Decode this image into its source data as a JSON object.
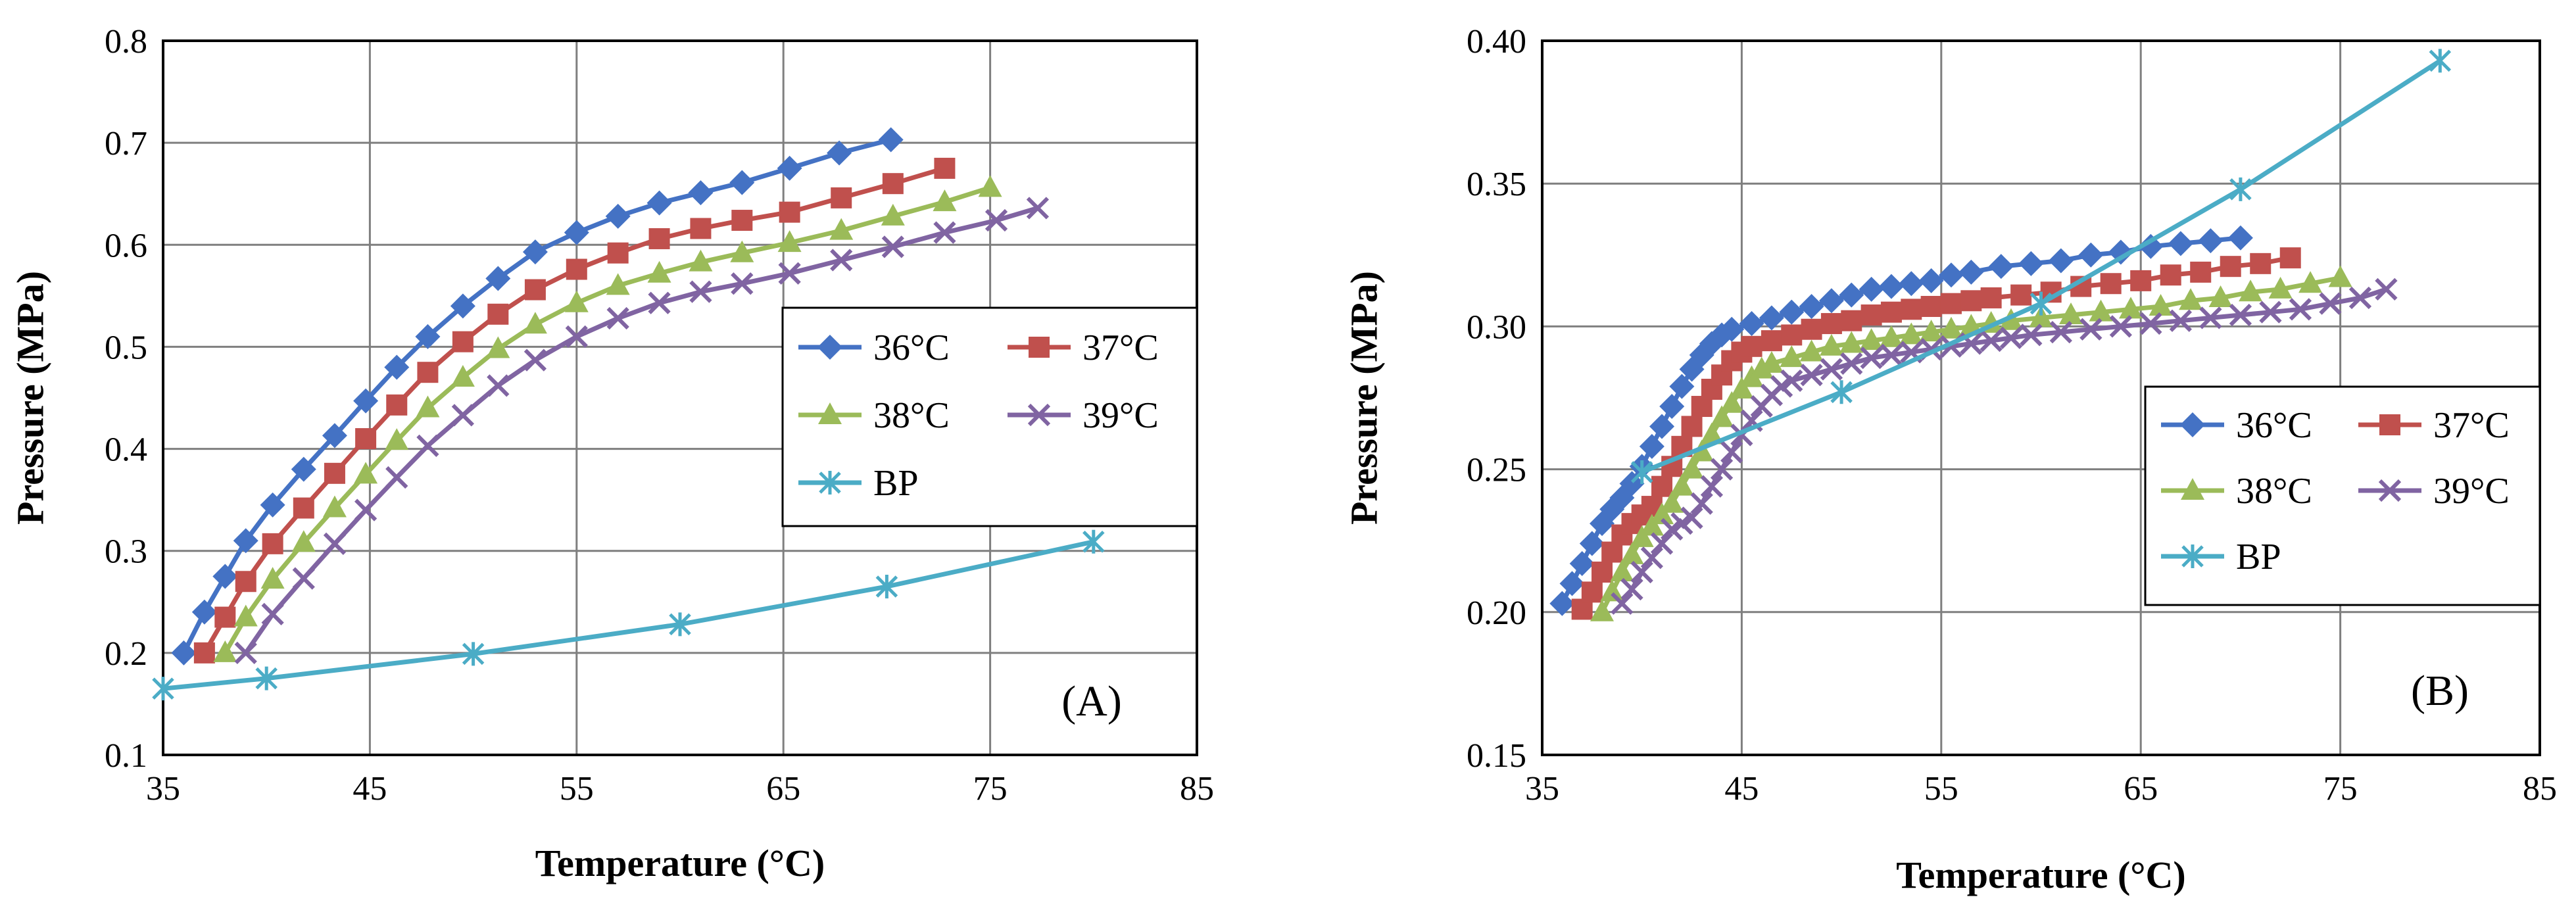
{
  "colors": {
    "36C": "#4472C4",
    "37C": "#C0504D",
    "38C": "#9BBB59",
    "39C": "#8064A2",
    "BP": "#4BACC6",
    "grid": "#7F7F7F",
    "frame": "#000000"
  },
  "chart_data": [
    {
      "type": "line",
      "panel_label": "(A)",
      "xlabel": "Temperature (°C)",
      "ylabel": "Pressure (MPa)",
      "xlim": [
        35,
        85
      ],
      "ylim": [
        0.1,
        0.8
      ],
      "x_ticks": [
        35,
        45,
        55,
        65,
        75,
        85
      ],
      "x_tick_labels": [
        "35",
        "45",
        "55",
        "65",
        "75",
        "85"
      ],
      "y_ticks": [
        0.1,
        0.2,
        0.3,
        0.4,
        0.5,
        0.6,
        0.7,
        0.8
      ],
      "y_tick_labels": [
        "0.1",
        "0.2",
        "0.3",
        "0.4",
        "0.5",
        "0.6",
        "0.7",
        "0.8"
      ],
      "grid": true,
      "legend": {
        "placement": "right-center",
        "columns": 2
      },
      "series": [
        {
          "name": "36°C",
          "color_key": "36C",
          "marker": "diamond",
          "x": [
            36,
            37,
            38,
            39,
            40.3,
            41.8,
            43.3,
            44.8,
            46.3,
            47.8,
            49.5,
            51.2,
            53,
            55,
            57,
            59,
            61,
            63,
            65.3,
            67.7,
            70.2
          ],
          "y": [
            0.2,
            0.24,
            0.275,
            0.31,
            0.345,
            0.38,
            0.413,
            0.447,
            0.48,
            0.51,
            0.54,
            0.567,
            0.593,
            0.612,
            0.628,
            0.641,
            0.651,
            0.661,
            0.675,
            0.69,
            0.703
          ]
        },
        {
          "name": "37°C",
          "color_key": "37C",
          "marker": "square",
          "x": [
            37,
            38,
            39,
            40.3,
            41.8,
            43.3,
            44.8,
            46.3,
            47.8,
            49.5,
            51.2,
            53,
            55,
            57,
            59,
            61,
            63,
            65.3,
            67.8,
            70.3,
            72.8
          ],
          "y": [
            0.2,
            0.235,
            0.27,
            0.307,
            0.342,
            0.376,
            0.41,
            0.443,
            0.475,
            0.505,
            0.532,
            0.556,
            0.576,
            0.592,
            0.606,
            0.616,
            0.624,
            0.632,
            0.646,
            0.66,
            0.675
          ]
        },
        {
          "name": "38°C",
          "color_key": "38C",
          "marker": "triangle",
          "x": [
            38,
            39,
            40.3,
            41.8,
            43.3,
            44.8,
            46.3,
            47.8,
            49.5,
            51.2,
            53,
            55,
            57,
            59,
            61,
            63,
            65.3,
            67.8,
            70.3,
            72.8,
            75
          ],
          "y": [
            0.2,
            0.235,
            0.272,
            0.308,
            0.342,
            0.375,
            0.408,
            0.44,
            0.47,
            0.498,
            0.522,
            0.543,
            0.56,
            0.572,
            0.583,
            0.592,
            0.602,
            0.614,
            0.628,
            0.642,
            0.656
          ]
        },
        {
          "name": "39°C",
          "color_key": "39C",
          "marker": "x",
          "x": [
            39,
            40.3,
            41.8,
            43.3,
            44.8,
            46.3,
            47.8,
            49.5,
            51.2,
            53,
            55,
            57,
            59,
            61,
            63,
            65.3,
            67.8,
            70.3,
            72.8,
            75.3,
            77.3
          ],
          "y": [
            0.2,
            0.238,
            0.273,
            0.307,
            0.34,
            0.372,
            0.403,
            0.433,
            0.462,
            0.487,
            0.51,
            0.528,
            0.543,
            0.554,
            0.562,
            0.572,
            0.585,
            0.598,
            0.612,
            0.624,
            0.636
          ]
        },
        {
          "name": "BP",
          "color_key": "BP",
          "marker": "star",
          "x": [
            35,
            40,
            50,
            60,
            70,
            80
          ],
          "y": [
            0.165,
            0.175,
            0.199,
            0.228,
            0.265,
            0.309
          ]
        }
      ]
    },
    {
      "type": "line",
      "panel_label": "(B)",
      "xlabel": "Temperature (°C)",
      "ylabel": "Pressure (MPa)",
      "xlim": [
        35,
        85
      ],
      "ylim": [
        0.15,
        0.4
      ],
      "x_ticks": [
        35,
        45,
        55,
        65,
        75,
        85
      ],
      "x_tick_labels": [
        "35",
        "45",
        "55",
        "65",
        "75",
        "85"
      ],
      "y_ticks": [
        0.15,
        0.2,
        0.25,
        0.3,
        0.35,
        0.4
      ],
      "y_tick_labels": [
        "0.15",
        "0.20",
        "0.25",
        "0.30",
        "0.35",
        "0.40"
      ],
      "grid": true,
      "legend": {
        "placement": "bottom-right",
        "columns": 2
      },
      "series": [
        {
          "name": "36°C",
          "color_key": "36C",
          "marker": "diamond",
          "x": [
            36,
            36.5,
            37,
            37.5,
            38,
            38.5,
            39,
            39.5,
            40,
            40.5,
            41,
            41.5,
            42,
            42.5,
            43,
            43.5,
            44,
            44.5,
            45.5,
            46.5,
            47.5,
            48.5,
            49.5,
            50.5,
            51.5,
            52.5,
            53.5,
            54.5,
            55.5,
            56.5,
            58,
            59.5,
            61,
            62.5,
            64,
            65.5,
            67,
            68.5,
            70
          ],
          "y": [
            0.203,
            0.21,
            0.217,
            0.224,
            0.231,
            0.236,
            0.24,
            0.245,
            0.251,
            0.258,
            0.265,
            0.272,
            0.279,
            0.285,
            0.29,
            0.294,
            0.297,
            0.299,
            0.301,
            0.303,
            0.305,
            0.307,
            0.309,
            0.311,
            0.313,
            0.314,
            0.315,
            0.316,
            0.318,
            0.319,
            0.321,
            0.322,
            0.323,
            0.325,
            0.326,
            0.328,
            0.329,
            0.33,
            0.331
          ]
        },
        {
          "name": "37°C",
          "color_key": "37C",
          "marker": "square",
          "x": [
            37,
            37.5,
            38,
            38.5,
            39,
            39.5,
            40,
            40.5,
            41,
            41.5,
            42,
            42.5,
            43,
            43.5,
            44,
            44.5,
            45,
            45.5,
            46.5,
            47.5,
            48.5,
            49.5,
            50.5,
            51.5,
            52.5,
            53.5,
            54.5,
            55.5,
            56.5,
            57.5,
            59,
            60.5,
            62,
            63.5,
            65,
            66.5,
            68,
            69.5,
            71,
            72.5
          ],
          "y": [
            0.201,
            0.207,
            0.214,
            0.221,
            0.227,
            0.231,
            0.234,
            0.237,
            0.244,
            0.251,
            0.258,
            0.265,
            0.272,
            0.278,
            0.283,
            0.288,
            0.291,
            0.293,
            0.295,
            0.297,
            0.299,
            0.301,
            0.302,
            0.304,
            0.305,
            0.306,
            0.307,
            0.308,
            0.309,
            0.31,
            0.311,
            0.312,
            0.314,
            0.315,
            0.316,
            0.318,
            0.319,
            0.321,
            0.322,
            0.324
          ]
        },
        {
          "name": "38°C",
          "color_key": "38C",
          "marker": "triangle",
          "x": [
            38,
            38.5,
            39,
            39.5,
            40,
            40.5,
            41,
            41.5,
            42,
            42.5,
            43,
            43.5,
            44,
            44.5,
            45,
            45.5,
            46,
            46.5,
            47.5,
            48.5,
            49.5,
            50.5,
            51.5,
            52.5,
            53.5,
            54.5,
            55.5,
            56.5,
            57.5,
            58.5,
            60,
            61.5,
            63,
            64.5,
            66,
            67.5,
            69,
            70.5,
            72,
            73.5,
            75
          ],
          "y": [
            0.2,
            0.207,
            0.214,
            0.22,
            0.226,
            0.23,
            0.234,
            0.238,
            0.244,
            0.25,
            0.256,
            0.262,
            0.268,
            0.273,
            0.278,
            0.282,
            0.285,
            0.287,
            0.289,
            0.291,
            0.293,
            0.294,
            0.295,
            0.296,
            0.297,
            0.298,
            0.299,
            0.3,
            0.301,
            0.302,
            0.303,
            0.304,
            0.305,
            0.306,
            0.307,
            0.309,
            0.31,
            0.312,
            0.313,
            0.315,
            0.317
          ]
        },
        {
          "name": "39°C",
          "color_key": "39C",
          "marker": "x",
          "x": [
            39,
            39.5,
            40,
            40.5,
            41,
            41.5,
            42,
            42.5,
            43,
            43.5,
            44,
            44.5,
            45,
            45.5,
            46,
            46.5,
            47,
            47.5,
            48.5,
            49.5,
            50.5,
            51.5,
            52.5,
            53.5,
            54.5,
            55.5,
            56.5,
            57.5,
            58.5,
            59.5,
            61,
            62.5,
            64,
            65.5,
            67,
            68.5,
            70,
            71.5,
            73,
            74.5,
            76,
            77.3
          ],
          "y": [
            0.203,
            0.208,
            0.214,
            0.219,
            0.224,
            0.229,
            0.231,
            0.233,
            0.238,
            0.244,
            0.25,
            0.256,
            0.262,
            0.267,
            0.272,
            0.276,
            0.279,
            0.281,
            0.283,
            0.285,
            0.287,
            0.289,
            0.29,
            0.291,
            0.292,
            0.293,
            0.294,
            0.295,
            0.296,
            0.297,
            0.298,
            0.299,
            0.3,
            0.301,
            0.302,
            0.303,
            0.304,
            0.305,
            0.306,
            0.308,
            0.31,
            0.313
          ]
        },
        {
          "name": "BP",
          "color_key": "BP",
          "marker": "star",
          "x": [
            40,
            50,
            60,
            70,
            80
          ],
          "y": [
            0.249,
            0.277,
            0.308,
            0.348,
            0.393
          ]
        }
      ]
    }
  ]
}
